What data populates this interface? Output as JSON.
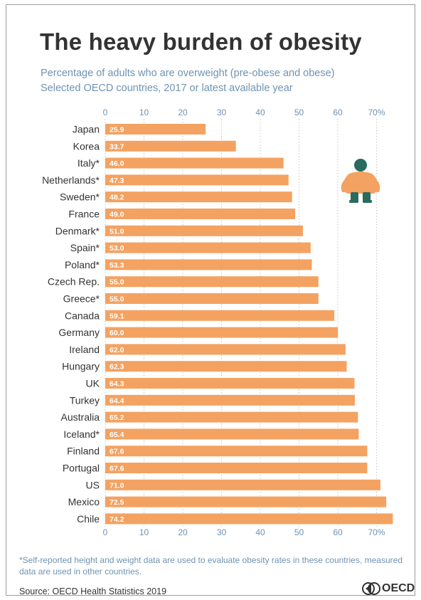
{
  "header": {
    "title": "The heavy burden of obesity",
    "subtitle_line1": "Percentage of adults who are overweight (pre-obese and obese)",
    "subtitle_line2": "Selected OECD countries, 2017 or latest available year"
  },
  "chart_data": {
    "type": "bar",
    "orientation": "horizontal",
    "title": "The heavy burden of obesity",
    "xlim": [
      0,
      70
    ],
    "xticks": [
      0,
      10,
      20,
      30,
      40,
      50,
      60,
      70
    ],
    "xtick_labels": [
      "0",
      "10",
      "20",
      "30",
      "40",
      "50",
      "60",
      "70%"
    ],
    "grid": "vertical dotted",
    "bar_color": "#f4a261",
    "categories": [
      "Japan",
      "Korea",
      "Italy*",
      "Netherlands*",
      "Sweden*",
      "France",
      "Denmark*",
      "Spain*",
      "Poland*",
      "Czech Rep.",
      "Greece*",
      "Canada",
      "Germany",
      "Ireland",
      "Hungary",
      "UK",
      "Turkey",
      "Australia",
      "Iceland*",
      "Finland",
      "Portugal",
      "US",
      "Mexico",
      "Chile"
    ],
    "values": [
      25.9,
      33.7,
      46.0,
      47.3,
      48.2,
      49.0,
      51.0,
      53.0,
      53.3,
      55.0,
      55.0,
      59.1,
      60.0,
      62.0,
      62.3,
      64.3,
      64.4,
      65.2,
      65.4,
      67.6,
      67.6,
      71.0,
      72.5,
      74.2
    ],
    "value_labels": [
      "25.9",
      "33.7",
      "46.0",
      "47.3",
      "48.2",
      "49.0",
      "51.0",
      "53.0",
      "53.3",
      "55.0",
      "55.0",
      "59.1",
      "60.0",
      "62.0",
      "62.3",
      "64.3",
      "64.4",
      "65.2",
      "65.4",
      "67.6",
      "67.6",
      "71.0",
      "72.5",
      "74.2"
    ]
  },
  "icons": {
    "figure": "overweight-person-icon",
    "logo": "oecd-logo-icon"
  },
  "footer": {
    "footnote": "*Self-reported height and weight data are used to evaluate obesity rates in these countries, measured data are used in other countries.",
    "source": "Source: OECD Health Statistics 2019",
    "logo_text": "OECD"
  },
  "colors": {
    "bar": "#f4a261",
    "title": "#333333",
    "subtitle": "#6f93b3",
    "figure_head": "#2a6b5e",
    "figure_body": "#f4a261"
  }
}
